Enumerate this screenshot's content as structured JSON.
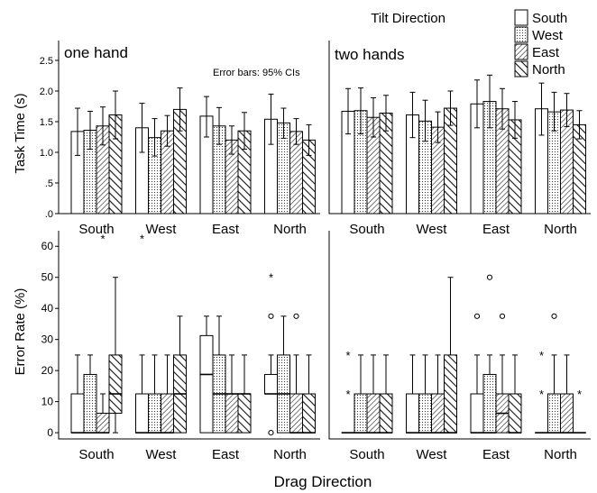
{
  "figure": {
    "legend_title": "Tilt Direction",
    "tilt_directions": [
      "South",
      "West",
      "East",
      "North"
    ],
    "xlabel": "Drag Direction",
    "panel_titles": [
      "one hand",
      "two hands"
    ],
    "error_bar_note": "Error bars: 95% CIs",
    "top_ylabel": "Task Time (s)",
    "bottom_ylabel": "Error Rate (%)"
  },
  "chart_data": [
    {
      "type": "bar",
      "panel": "one hand",
      "title": "one hand",
      "annotation": "Error bars: 95% CIs",
      "categories": [
        "South",
        "West",
        "East",
        "North"
      ],
      "xlabel": "",
      "ylabel": "Task Time (s)",
      "ylim": [
        0,
        2.5
      ],
      "yticks": [
        ".0",
        ".5",
        "1.0",
        "1.5",
        "2.0",
        "2.5"
      ],
      "series": [
        {
          "name": "South",
          "values": [
            1.34,
            1.4,
            1.59,
            1.54
          ],
          "ci_low": [
            0.95,
            1.0,
            1.25,
            1.13
          ],
          "ci_high": [
            1.72,
            1.8,
            1.91,
            1.95
          ]
        },
        {
          "name": "West",
          "values": [
            1.36,
            1.24,
            1.43,
            1.48
          ],
          "ci_low": [
            1.05,
            0.94,
            1.13,
            1.23
          ],
          "ci_high": [
            1.67,
            1.55,
            1.73,
            1.72
          ]
        },
        {
          "name": "East",
          "values": [
            1.43,
            1.35,
            1.2,
            1.34
          ],
          "ci_low": [
            1.12,
            1.1,
            0.97,
            1.13
          ],
          "ci_high": [
            1.74,
            1.6,
            1.43,
            1.55
          ]
        },
        {
          "name": "North",
          "values": [
            1.61,
            1.7,
            1.35,
            1.2
          ],
          "ci_low": [
            1.22,
            1.35,
            1.05,
            0.95
          ],
          "ci_high": [
            2.0,
            2.05,
            1.65,
            1.45
          ]
        }
      ]
    },
    {
      "type": "bar",
      "panel": "two hands",
      "title": "two hands",
      "categories": [
        "South",
        "West",
        "East",
        "North"
      ],
      "xlabel": "",
      "ylabel": "",
      "ylim": [
        0,
        2.5
      ],
      "series": [
        {
          "name": "South",
          "values": [
            1.67,
            1.61,
            1.79,
            1.71
          ],
          "ci_low": [
            1.3,
            1.24,
            1.4,
            1.28
          ],
          "ci_high": [
            2.04,
            1.98,
            2.18,
            2.13
          ]
        },
        {
          "name": "West",
          "values": [
            1.68,
            1.51,
            1.83,
            1.66
          ],
          "ci_low": [
            1.3,
            1.18,
            1.4,
            1.35
          ],
          "ci_high": [
            2.05,
            1.85,
            2.26,
            1.98
          ]
        },
        {
          "name": "East",
          "values": [
            1.57,
            1.41,
            1.71,
            1.69
          ],
          "ci_low": [
            1.25,
            1.16,
            1.38,
            1.42
          ],
          "ci_high": [
            1.89,
            1.66,
            2.04,
            1.96
          ]
        },
        {
          "name": "North",
          "values": [
            1.64,
            1.72,
            1.53,
            1.45
          ],
          "ci_low": [
            1.35,
            1.44,
            1.23,
            1.22
          ],
          "ci_high": [
            1.93,
            2.0,
            1.83,
            1.68
          ]
        }
      ]
    },
    {
      "type": "box",
      "panel": "one hand",
      "categories": [
        "South",
        "West",
        "East",
        "North"
      ],
      "xlabel": "Drag Direction",
      "ylabel": "Error Rate (%)",
      "ylim": [
        -2,
        65
      ],
      "yticks": [
        0,
        10,
        20,
        30,
        40,
        50,
        60
      ],
      "groups": [
        {
          "category": "South",
          "boxes": [
            {
              "tilt": "South",
              "min": 0,
              "q1": 0,
              "median": 0,
              "q3": 12.5,
              "max": 25,
              "outliers": [],
              "extremes": []
            },
            {
              "tilt": "West",
              "min": 0,
              "q1": 0,
              "median": 0,
              "q3": 18.75,
              "max": 25,
              "outliers": [],
              "extremes": []
            },
            {
              "tilt": "East",
              "min": 0,
              "q1": 0,
              "median": 0,
              "q3": 6.25,
              "max": 12.5,
              "outliers": [],
              "extremes": [
                62.5
              ]
            },
            {
              "tilt": "North",
              "min": 0,
              "q1": 6.25,
              "median": 12.5,
              "q3": 25,
              "max": 50,
              "outliers": [],
              "extremes": []
            }
          ]
        },
        {
          "category": "West",
          "boxes": [
            {
              "tilt": "South",
              "min": 0,
              "q1": 0,
              "median": 0,
              "q3": 12.5,
              "max": 25,
              "outliers": [],
              "extremes": [
                62.5
              ]
            },
            {
              "tilt": "West",
              "min": 0,
              "q1": 0,
              "median": 0,
              "q3": 12.5,
              "max": 25,
              "outliers": [],
              "extremes": []
            },
            {
              "tilt": "East",
              "min": 0,
              "q1": 0,
              "median": 0,
              "q3": 12.5,
              "max": 25,
              "outliers": [],
              "extremes": []
            },
            {
              "tilt": "North",
              "min": 0,
              "q1": 0,
              "median": 12.5,
              "q3": 25,
              "max": 37.5,
              "outliers": [],
              "extremes": []
            }
          ]
        },
        {
          "category": "East",
          "boxes": [
            {
              "tilt": "South",
              "min": 0,
              "q1": 0,
              "median": 18.75,
              "q3": 31.25,
              "max": 37.5,
              "outliers": [],
              "extremes": []
            },
            {
              "tilt": "West",
              "min": 0,
              "q1": 0,
              "median": 12.5,
              "q3": 25,
              "max": 37.5,
              "outliers": [],
              "extremes": []
            },
            {
              "tilt": "East",
              "min": 0,
              "q1": 0,
              "median": 12.5,
              "q3": 12.5,
              "max": 25,
              "outliers": [],
              "extremes": []
            },
            {
              "tilt": "North",
              "min": 0,
              "q1": 0,
              "median": 12.5,
              "q3": 12.5,
              "max": 25,
              "outliers": [],
              "extremes": []
            }
          ]
        },
        {
          "category": "North",
          "boxes": [
            {
              "tilt": "South",
              "min": 12.5,
              "q1": 12.5,
              "median": 12.5,
              "q3": 18.75,
              "max": 25,
              "outliers": [
                0,
                37.5
              ],
              "extremes": [
                50
              ]
            },
            {
              "tilt": "West",
              "min": 0,
              "q1": 0,
              "median": 12.5,
              "q3": 25,
              "max": 37.5,
              "outliers": [],
              "extremes": []
            },
            {
              "tilt": "East",
              "min": 0,
              "q1": 0,
              "median": 0,
              "q3": 12.5,
              "max": 25,
              "outliers": [
                37.5
              ],
              "extremes": []
            },
            {
              "tilt": "North",
              "min": 0,
              "q1": 0,
              "median": 0,
              "q3": 12.5,
              "max": 25,
              "outliers": [],
              "extremes": []
            }
          ]
        }
      ]
    },
    {
      "type": "box",
      "panel": "two hands",
      "categories": [
        "South",
        "West",
        "East",
        "North"
      ],
      "xlabel": "Drag Direction",
      "ylabel": "",
      "ylim": [
        -2,
        65
      ],
      "groups": [
        {
          "category": "South",
          "boxes": [
            {
              "tilt": "South",
              "min": 0,
              "q1": 0,
              "median": 0,
              "q3": 0,
              "max": 0,
              "outliers": [],
              "extremes": [
                12.5,
                25
              ]
            },
            {
              "tilt": "West",
              "min": 0,
              "q1": 0,
              "median": 0,
              "q3": 12.5,
              "max": 25,
              "outliers": [],
              "extremes": []
            },
            {
              "tilt": "East",
              "min": 0,
              "q1": 0,
              "median": 0,
              "q3": 12.5,
              "max": 25,
              "outliers": [],
              "extremes": []
            },
            {
              "tilt": "North",
              "min": 0,
              "q1": 0,
              "median": 0,
              "q3": 12.5,
              "max": 25,
              "outliers": [],
              "extremes": []
            }
          ]
        },
        {
          "category": "West",
          "boxes": [
            {
              "tilt": "South",
              "min": 0,
              "q1": 0,
              "median": 0,
              "q3": 12.5,
              "max": 25,
              "outliers": [],
              "extremes": []
            },
            {
              "tilt": "West",
              "min": 0,
              "q1": 0,
              "median": 0,
              "q3": 12.5,
              "max": 25,
              "outliers": [],
              "extremes": []
            },
            {
              "tilt": "East",
              "min": 0,
              "q1": 0,
              "median": 0,
              "q3": 12.5,
              "max": 25,
              "outliers": [],
              "extremes": []
            },
            {
              "tilt": "North",
              "min": 0,
              "q1": 0,
              "median": 0,
              "q3": 25,
              "max": 50,
              "outliers": [],
              "extremes": []
            }
          ]
        },
        {
          "category": "East",
          "boxes": [
            {
              "tilt": "South",
              "min": 0,
              "q1": 0,
              "median": 0,
              "q3": 12.5,
              "max": 25,
              "outliers": [
                37.5
              ],
              "extremes": []
            },
            {
              "tilt": "West",
              "min": 0,
              "q1": 0,
              "median": 0,
              "q3": 18.75,
              "max": 25,
              "outliers": [
                50
              ],
              "extremes": []
            },
            {
              "tilt": "East",
              "min": 0,
              "q1": 0,
              "median": 6.25,
              "q3": 12.5,
              "max": 25,
              "outliers": [
                37.5
              ],
              "extremes": []
            },
            {
              "tilt": "North",
              "min": 0,
              "q1": 0,
              "median": 0,
              "q3": 12.5,
              "max": 25,
              "outliers": [],
              "extremes": []
            }
          ]
        },
        {
          "category": "North",
          "boxes": [
            {
              "tilt": "South",
              "min": 0,
              "q1": 0,
              "median": 0,
              "q3": 0,
              "max": 0,
              "outliers": [],
              "extremes": [
                12.5,
                25
              ]
            },
            {
              "tilt": "West",
              "min": 0,
              "q1": 0,
              "median": 0,
              "q3": 12.5,
              "max": 25,
              "outliers": [
                37.5
              ],
              "extremes": []
            },
            {
              "tilt": "East",
              "min": 0,
              "q1": 0,
              "median": 0,
              "q3": 12.5,
              "max": 25,
              "outliers": [],
              "extremes": []
            },
            {
              "tilt": "North",
              "min": 0,
              "q1": 0,
              "median": 0,
              "q3": 0,
              "max": 0,
              "outliers": [],
              "extremes": [
                12.5
              ]
            }
          ]
        }
      ]
    }
  ]
}
